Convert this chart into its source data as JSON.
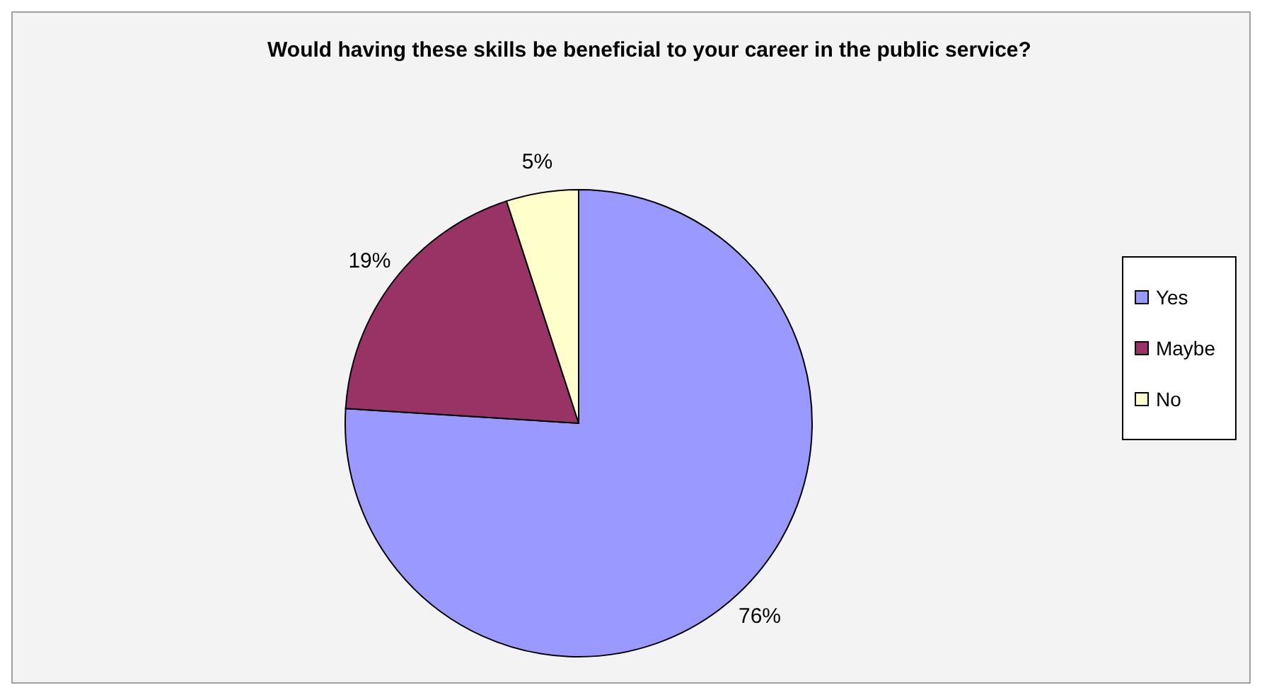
{
  "chart_data": {
    "type": "pie",
    "title": "Would having these skills be beneficial to your career in the public service?",
    "categories": [
      "Yes",
      "Maybe",
      "No"
    ],
    "values": [
      76,
      19,
      5
    ],
    "colors": [
      "#9999ff",
      "#993366",
      "#ffffcc"
    ],
    "value_labels": [
      "76%",
      "19%",
      "5%"
    ],
    "legend": "right"
  }
}
